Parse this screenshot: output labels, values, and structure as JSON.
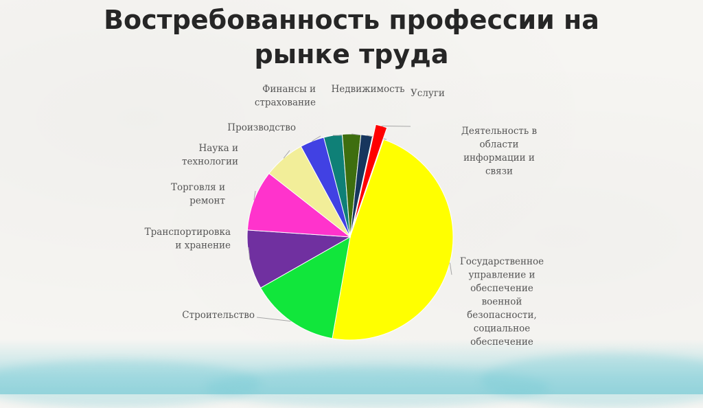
{
  "title_lines": [
    "Востребованность профессии на",
    "рынке труда"
  ],
  "colors": {
    "text": "#262626",
    "label": "#555555",
    "leader": "#a6a6a6"
  },
  "chart_data": {
    "type": "pie",
    "title": "Востребованность профессии на рынке труда",
    "legend": "none",
    "slices": [
      {
        "label": "Государственное управление и обеспечение военной безопасности, социальное обеспечение",
        "value": 47.5,
        "color": "#ffff00"
      },
      {
        "label": "Строительство",
        "value": 14.0,
        "color": "#11e63b"
      },
      {
        "label": "Транспортировка и хранение",
        "value": 9.3,
        "color": "#7030a0"
      },
      {
        "label": "Торговля и ремонт",
        "value": 9.5,
        "color": "#ff33cc"
      },
      {
        "label": "Наука и технологии",
        "value": 6.5,
        "color": "#f2ee99"
      },
      {
        "label": "Производство",
        "value": 3.8,
        "color": "#4141e3"
      },
      {
        "label": "Финансы и страхование",
        "value": 2.9,
        "color": "#0f8077"
      },
      {
        "label": "Недвижимость",
        "value": 2.9,
        "color": "#3e6e0f"
      },
      {
        "label": "Услуги",
        "value": 1.8,
        "color": "#17365d"
      },
      {
        "label": "Деятельность в области информации и связи",
        "value": 1.8,
        "color": "#ff0000"
      }
    ]
  }
}
